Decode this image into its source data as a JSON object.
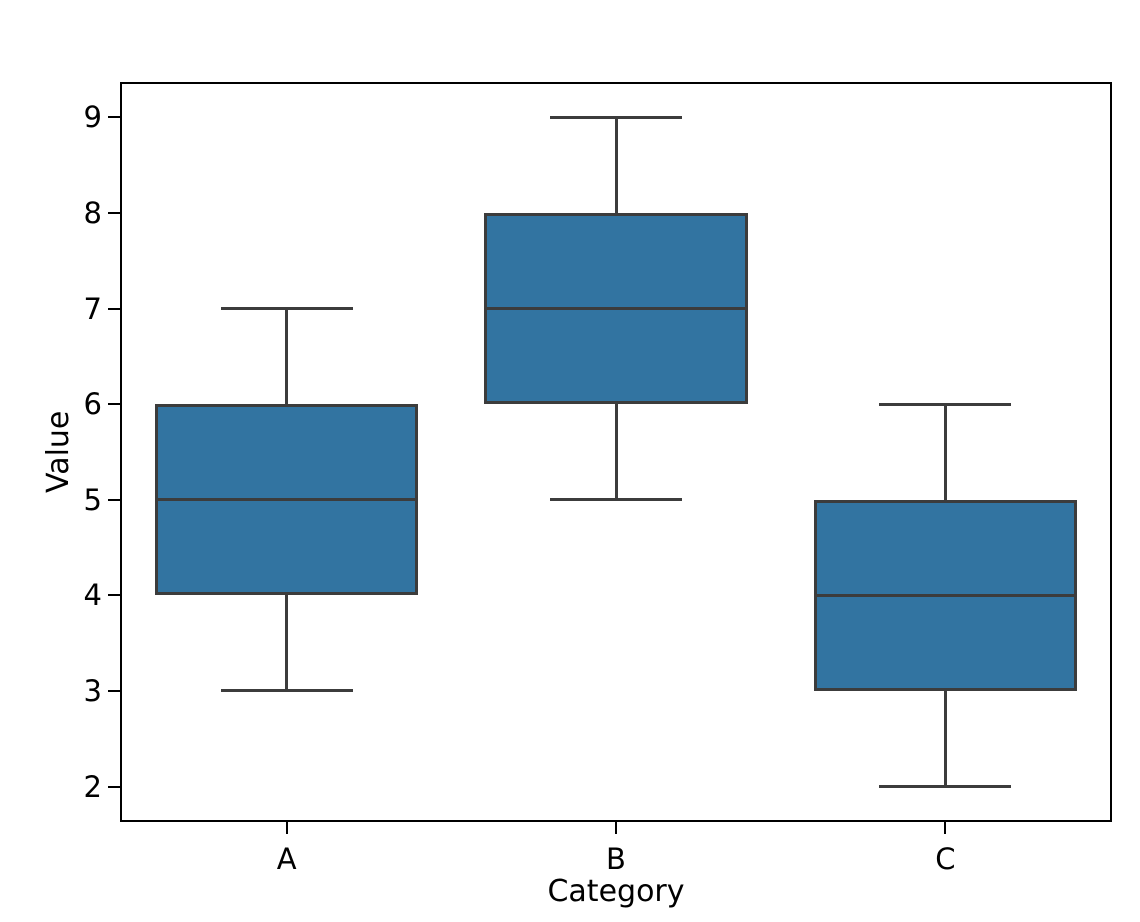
{
  "chart_data": {
    "type": "box",
    "title": "",
    "xlabel": "Category",
    "ylabel": "Value",
    "categories": [
      "A",
      "B",
      "C"
    ],
    "yticks": [
      2,
      3,
      4,
      5,
      6,
      7,
      8,
      9
    ],
    "ylim": [
      1.65,
      9.35
    ],
    "grid": false,
    "legend": null,
    "series": [
      {
        "category": "A",
        "whisker_low": 3,
        "q1": 4,
        "median": 5,
        "q3": 6,
        "whisker_high": 7
      },
      {
        "category": "B",
        "whisker_low": 5,
        "q1": 6,
        "median": 7,
        "q3": 8,
        "whisker_high": 9
      },
      {
        "category": "C",
        "whisker_low": 2,
        "q1": 3,
        "median": 4,
        "q3": 5,
        "whisker_high": 6
      }
    ],
    "box_fill": "#3274A1",
    "line_color": "#3C3C3C",
    "axis_color": "#000000",
    "text_color": "#000000",
    "box_width_frac": 0.8,
    "cap_width_frac": 0.4
  }
}
